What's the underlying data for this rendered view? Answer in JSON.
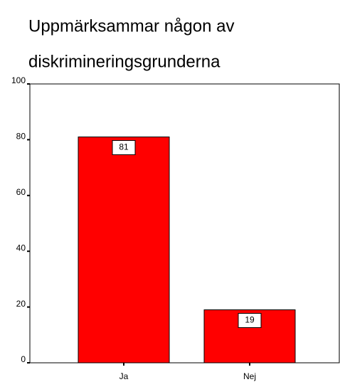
{
  "chart_data": {
    "type": "bar",
    "title": [
      "Uppmärksammar någon av",
      "diskrimineringsgrunderna"
    ],
    "categories": [
      "Ja",
      "Nej"
    ],
    "values": [
      81,
      19
    ],
    "color": "#ff0000",
    "ylim": [
      0,
      100
    ],
    "yticks": [
      0,
      20,
      40,
      60,
      80,
      100
    ],
    "data_labels": true
  }
}
